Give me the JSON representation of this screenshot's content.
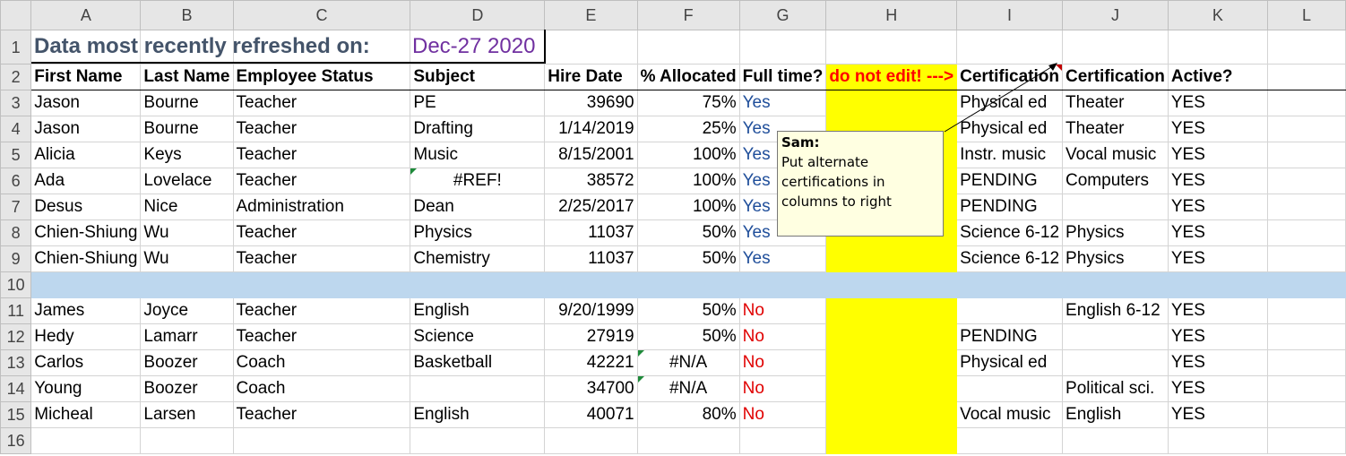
{
  "columns": [
    "A",
    "B",
    "C",
    "D",
    "E",
    "F",
    "G",
    "H",
    "I",
    "J",
    "K",
    "L"
  ],
  "title": {
    "label": "Data most recently refreshed on:",
    "date": "Dec-27 2020"
  },
  "headers": [
    "First Name",
    "Last Name",
    "Employee Status",
    "Subject",
    "Hire Date",
    "% Allocated",
    "Full time?",
    "do not edit! --->",
    "Certification",
    "Certification",
    "Active?",
    ""
  ],
  "rows": [
    {
      "n": "3",
      "cells": [
        "Jason",
        "Bourne",
        "Teacher",
        "PE",
        "39690",
        "75%",
        "Yes",
        "",
        "Physical ed",
        "Theater",
        "YES",
        ""
      ]
    },
    {
      "n": "4",
      "cells": [
        "Jason",
        "Bourne",
        "Teacher",
        "Drafting",
        "1/14/2019",
        "25%",
        "Yes",
        "",
        "Physical ed",
        "Theater",
        "YES",
        ""
      ]
    },
    {
      "n": "5",
      "cells": [
        "Alicia",
        "Keys",
        "Teacher",
        "Music",
        "8/15/2001",
        "100%",
        "Yes",
        "",
        "Instr. music",
        "Vocal music",
        "YES",
        ""
      ]
    },
    {
      "n": "6",
      "cells": [
        "Ada",
        "Lovelace",
        "Teacher",
        "#REF!",
        "38572",
        "100%",
        "Yes",
        "",
        "PENDING",
        "Computers",
        "YES",
        ""
      ]
    },
    {
      "n": "7",
      "cells": [
        "Desus",
        "Nice",
        "Administration",
        "Dean",
        "2/25/2017",
        "100%",
        "Yes",
        "",
        "PENDING",
        "",
        "YES",
        ""
      ]
    },
    {
      "n": "8",
      "cells": [
        "Chien-Shiung",
        "Wu",
        "Teacher",
        "Physics",
        "11037",
        "50%",
        "Yes",
        "",
        "Science 6-12",
        "Physics",
        "YES",
        ""
      ]
    },
    {
      "n": "9",
      "cells": [
        "Chien-Shiung",
        "Wu",
        "Teacher",
        "Chemistry",
        "11037",
        "50%",
        "Yes",
        "",
        "Science 6-12",
        "Physics",
        "YES",
        ""
      ]
    },
    {
      "n": "10",
      "cells": [
        "",
        "",
        "",
        "",
        "",
        "",
        "",
        "",
        "",
        "",
        "",
        ""
      ]
    },
    {
      "n": "11",
      "cells": [
        "James",
        "Joyce",
        "Teacher",
        "English",
        "9/20/1999",
        "50%",
        "No",
        "",
        "",
        "English 6-12",
        "YES",
        ""
      ]
    },
    {
      "n": "12",
      "cells": [
        "Hedy",
        "Lamarr",
        "Teacher",
        "Science",
        "27919",
        "50%",
        "No",
        "",
        "PENDING",
        "",
        "YES",
        ""
      ]
    },
    {
      "n": "13",
      "cells": [
        "Carlos",
        "Boozer",
        "Coach",
        "Basketball",
        "42221",
        "#N/A",
        "No",
        "",
        "Physical ed",
        "",
        "YES",
        ""
      ]
    },
    {
      "n": "14",
      "cells": [
        "Young",
        "Boozer",
        "Coach",
        "",
        "34700",
        "#N/A",
        "No",
        "",
        "",
        "Political sci.",
        "YES",
        ""
      ]
    },
    {
      "n": "15",
      "cells": [
        "Micheal",
        "Larsen",
        "Teacher",
        "English",
        "40071",
        "80%",
        "No",
        "",
        "Vocal music",
        "English",
        "YES",
        ""
      ]
    },
    {
      "n": "16",
      "cells": [
        "",
        "",
        "",
        "",
        "",
        "",
        "",
        "",
        "",
        "",
        "",
        ""
      ]
    }
  ],
  "comment": {
    "author": "Sam:",
    "text": "Put alternate certifications in columns to right"
  },
  "colors": {
    "highlight": "#ffff00",
    "separator_row": "#bdd7ee",
    "yes": "#1f4e9a",
    "no": "#e00000",
    "title": "#44546a",
    "date": "#7030a0"
  }
}
